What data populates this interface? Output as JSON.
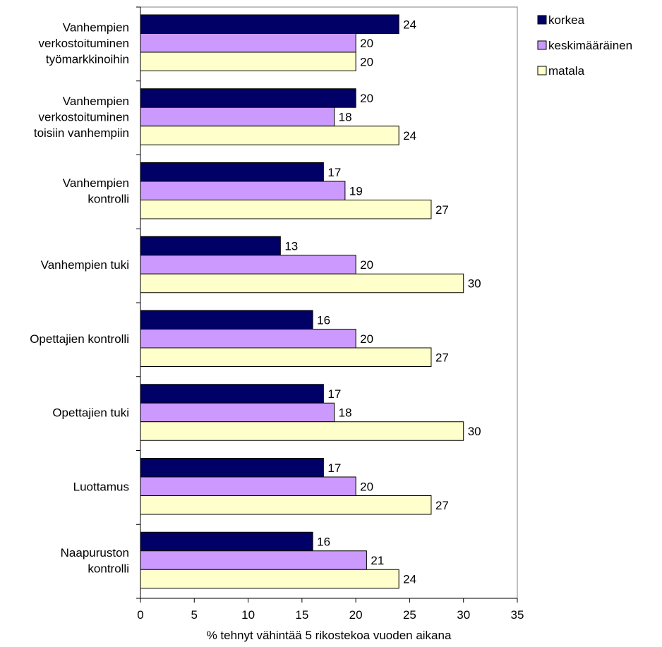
{
  "chart_data": {
    "type": "bar",
    "orientation": "horizontal",
    "categories": [
      [
        "Vanhempien",
        "verkostoituminen",
        "työmarkkinoihin"
      ],
      [
        "Vanhempien",
        "verkostoituminen",
        "toisiin vanhempiin"
      ],
      [
        "Vanhempien",
        "kontrolli"
      ],
      [
        "Vanhempien tuki"
      ],
      [
        "Opettajien kontrolli"
      ],
      [
        "Opettajien tuki"
      ],
      [
        "Luottamus"
      ],
      [
        "Naapuruston",
        "kontrolli"
      ]
    ],
    "series": [
      {
        "name": "korkea",
        "color": "#000066",
        "values": [
          24,
          20,
          17,
          13,
          16,
          17,
          17,
          16
        ]
      },
      {
        "name": "keskimääräinen",
        "color": "#cc99ff",
        "values": [
          20,
          18,
          19,
          20,
          20,
          18,
          20,
          21
        ]
      },
      {
        "name": "matala",
        "color": "#ffffcc",
        "values": [
          20,
          24,
          27,
          30,
          27,
          30,
          27,
          24
        ]
      }
    ],
    "xlabel": "% tehnyt vähintää 5 rikostekoa vuoden aikana",
    "ylabel": "",
    "xlim": [
      0,
      35
    ],
    "xticks": [
      0,
      5,
      10,
      15,
      20,
      25,
      30,
      35
    ],
    "grid": false,
    "legend_position": "top-right",
    "data_labels": true
  }
}
